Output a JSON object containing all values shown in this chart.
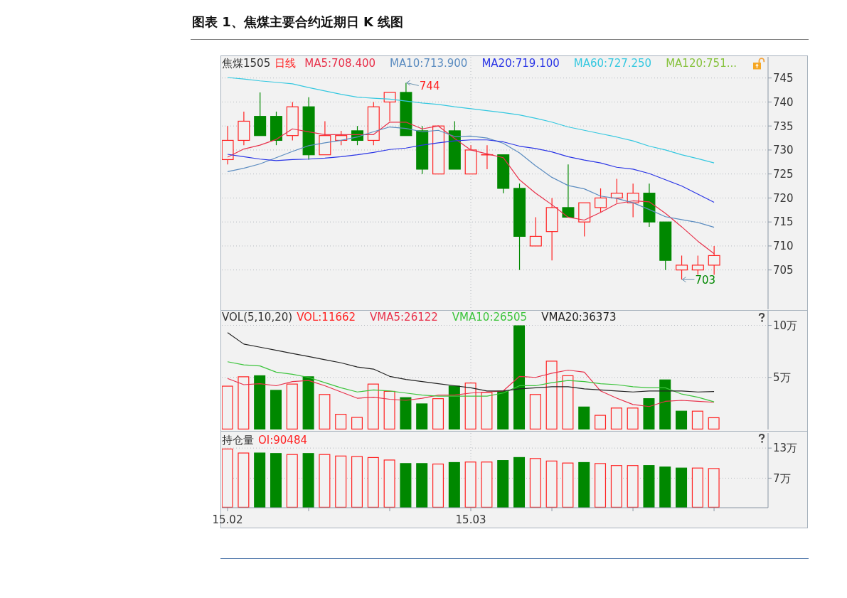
{
  "chart_data": [
    {
      "type": "candlestick",
      "title": "图表 1、焦煤主要合约近期日 K 线图",
      "legend_title": "焦煤1505",
      "annotations": [
        "日线",
        "MA120:751...",
        "744",
        "703"
      ],
      "categories": [
        "15.02",
        null,
        null,
        null,
        null,
        null,
        null,
        null,
        null,
        null,
        null,
        null,
        null,
        null,
        null,
        "15.03",
        null,
        null,
        null,
        null,
        null,
        null,
        null,
        null,
        null,
        null,
        null,
        null,
        null,
        null,
        null
      ],
      "ohlc": [
        [
          728,
          735,
          727,
          732
        ],
        [
          732,
          738,
          731,
          736
        ],
        [
          737,
          742,
          733,
          733
        ],
        [
          737,
          738,
          731,
          732
        ],
        [
          733,
          740,
          732,
          739
        ],
        [
          739,
          741,
          728,
          729
        ],
        [
          729,
          736,
          729,
          733
        ],
        [
          732,
          734,
          731,
          733
        ],
        [
          734,
          735,
          731,
          732
        ],
        [
          732,
          740,
          731,
          739
        ],
        [
          740,
          742,
          736,
          742
        ],
        [
          742,
          744,
          733,
          733
        ],
        [
          734,
          735,
          725,
          726
        ],
        [
          725,
          735,
          725,
          735
        ],
        [
          734,
          736,
          726,
          726
        ],
        [
          725,
          731,
          725,
          730
        ],
        [
          729,
          731,
          726,
          729
        ],
        [
          729,
          729,
          721,
          722
        ],
        [
          722,
          723,
          705,
          712
        ],
        [
          710,
          716,
          710,
          712
        ],
        [
          713,
          720,
          707,
          718
        ],
        [
          718,
          727,
          716,
          716
        ],
        [
          715,
          719,
          712,
          719
        ],
        [
          718,
          722,
          717,
          720
        ],
        [
          720,
          724,
          719,
          721
        ],
        [
          719,
          723,
          716,
          721
        ],
        [
          721,
          723,
          714,
          715
        ],
        [
          715,
          715,
          705,
          707
        ],
        [
          705,
          708,
          703,
          706
        ],
        [
          705,
          708,
          704,
          706
        ],
        [
          706,
          710,
          704,
          708
        ]
      ],
      "colors": [
        "#ff2222",
        "#ff2222",
        "#008800",
        "#008800",
        "#ff2222",
        "#008800",
        "#ff2222",
        "#ff2222",
        "#008800",
        "#ff2222",
        "#ff2222",
        "#008800",
        "#008800",
        "#ff2222",
        "#008800",
        "#ff2222",
        "#ff2222",
        "#008800",
        "#008800",
        "#ff2222",
        "#ff2222",
        "#008800",
        "#ff2222",
        "#ff2222",
        "#ff2222",
        "#ff2222",
        "#008800",
        "#008800",
        "#ff2222",
        "#ff2222",
        "#ff2222"
      ],
      "series": [
        {
          "type": "line",
          "name": "MA5:708.400",
          "color": "#e8304a",
          "values": [
            728.5,
            730.2,
            731.0,
            732.2,
            734.4,
            733.8,
            733.2,
            733.2,
            733.2,
            733.2,
            735.8,
            735.8,
            734.4,
            735.0,
            732.4,
            730.0,
            729.2,
            728.4,
            723.8,
            721.0,
            718.6,
            716.0,
            715.4,
            717.0,
            718.8,
            719.4,
            719.2,
            716.8,
            714.0,
            711.0,
            708.4
          ]
        },
        {
          "type": "line",
          "name": "MA10:713.900",
          "color": "#5b8cc0",
          "values": [
            725.5,
            726.2,
            727.1,
            728.4,
            729.7,
            730.9,
            731.5,
            732.0,
            732.7,
            733.8,
            734.8,
            734.5,
            733.8,
            734.1,
            732.8,
            732.9,
            732.5,
            731.4,
            729.4,
            726.7,
            724.3,
            722.6,
            721.9,
            720.4,
            719.9,
            719.0,
            717.6,
            716.1,
            715.5,
            714.9,
            713.9
          ]
        },
        {
          "type": "line",
          "name": "MA20:719.100",
          "color": "#2a35e6",
          "values": [
            729.1,
            728.6,
            728.1,
            727.8,
            728.0,
            728.1,
            728.3,
            728.6,
            729.0,
            729.5,
            730.1,
            730.4,
            731.0,
            731.5,
            731.9,
            732.1,
            732.1,
            731.7,
            730.8,
            730.3,
            729.6,
            728.6,
            727.9,
            727.3,
            726.4,
            726.0,
            725.1,
            723.8,
            722.5,
            720.8,
            719.1
          ]
        },
        {
          "type": "line",
          "name": "MA60:727.250",
          "color": "#35c8e0",
          "values": [
            745.1,
            744.8,
            744.4,
            744.1,
            743.8,
            743.0,
            742.3,
            741.6,
            741.0,
            740.8,
            740.6,
            740.2,
            739.8,
            739.5,
            739.0,
            738.6,
            738.2,
            737.8,
            737.3,
            736.6,
            735.8,
            734.8,
            734.1,
            733.4,
            732.7,
            731.9,
            730.8,
            730.0,
            729.0,
            728.2,
            727.3
          ]
        }
      ],
      "ylim": [
        696.8,
        749.4
      ],
      "yticks": [
        705,
        710,
        715,
        720,
        725,
        730,
        735,
        740,
        745
      ],
      "grid": true,
      "legend": "top left",
      "tick_labels": "y"
    },
    {
      "type": "bar",
      "legend_title": "VOL(5,10,20)",
      "categories": [
        "15.02",
        null,
        null,
        null,
        null,
        null,
        null,
        null,
        null,
        null,
        null,
        null,
        null,
        null,
        null,
        "15.03",
        null,
        null,
        null,
        null,
        null,
        null,
        null,
        null,
        null,
        null,
        null,
        null,
        null,
        null,
        null
      ],
      "series": [
        {
          "name": "VOL:11662",
          "colors": [
            "#ff2222",
            "#ff2222",
            "#008800",
            "#008800",
            "#ff2222",
            "#008800",
            "#ff2222",
            "#ff2222",
            "#ff2222",
            "#ff2222",
            "#ff2222",
            "#008800",
            "#008800",
            "#ff2222",
            "#008800",
            "#ff2222",
            "#ff2222",
            "#008800",
            "#008800",
            "#ff2222",
            "#ff2222",
            "#ff2222",
            "#008800",
            "#ff2222",
            "#ff2222",
            "#ff2222",
            "#008800",
            "#008800",
            "#008800",
            "#ff2222",
            "#ff2222"
          ],
          "values": [
            4.2,
            5.1,
            5.2,
            3.8,
            4.4,
            5.1,
            3.4,
            1.5,
            1.2,
            4.4,
            3.7,
            3.1,
            2.5,
            3.0,
            4.2,
            4.5,
            3.6,
            3.7,
            10.0,
            3.4,
            6.6,
            5.2,
            2.2,
            1.4,
            2.1,
            2.1,
            3.0,
            4.8,
            1.8,
            1.8,
            1.17
          ]
        },
        {
          "type": "line",
          "name": "VMA5:26122",
          "color": "#e8304a",
          "values": [
            4.9,
            4.3,
            4.4,
            4.2,
            4.6,
            4.7,
            4.2,
            3.6,
            3.0,
            3.1,
            2.9,
            2.8,
            3.0,
            3.3,
            3.3,
            3.5,
            3.6,
            3.7,
            5.1,
            5.0,
            5.4,
            5.7,
            5.5,
            3.7,
            3.0,
            2.4,
            2.2,
            2.7,
            2.8,
            2.7,
            2.61
          ]
        },
        {
          "type": "line",
          "name": "VMA10:26505",
          "color": "#3cc43c",
          "values": [
            6.5,
            6.2,
            6.1,
            5.5,
            5.3,
            5.0,
            4.5,
            4.0,
            3.6,
            3.8,
            3.7,
            3.5,
            3.3,
            3.2,
            3.2,
            3.2,
            3.2,
            3.5,
            4.2,
            4.2,
            4.5,
            4.7,
            4.6,
            4.4,
            4.3,
            4.1,
            4.0,
            4.0,
            3.4,
            3.1,
            2.65
          ]
        },
        {
          "type": "line",
          "name": "VMA20:36373",
          "color": "#222222",
          "values": [
            9.3,
            8.2,
            7.9,
            7.6,
            7.3,
            7.0,
            6.7,
            6.4,
            6.0,
            5.8,
            5.1,
            4.8,
            4.6,
            4.4,
            4.2,
            4.0,
            3.7,
            3.7,
            3.9,
            4.0,
            4.1,
            4.1,
            3.9,
            3.8,
            3.7,
            3.6,
            3.7,
            3.7,
            3.7,
            3.6,
            3.64
          ]
        }
      ],
      "ylim": [
        0,
        11.4
      ],
      "yticks": [
        {
          "value": 5,
          "label": "5万"
        },
        {
          "value": 10,
          "label": "10万"
        }
      ],
      "grid": true,
      "legend": "top left",
      "tick_labels": "y"
    },
    {
      "type": "bar",
      "legend_title": "持仓量",
      "categories": [
        "15.02",
        null,
        null,
        null,
        null,
        null,
        null,
        null,
        null,
        null,
        null,
        null,
        null,
        null,
        null,
        "15.03",
        null,
        null,
        null,
        null,
        null,
        null,
        null,
        null,
        null,
        null,
        null,
        null,
        null,
        null,
        null
      ],
      "series": [
        {
          "name": "OI:90484",
          "colors": [
            "#ff2222",
            "#ff2222",
            "#008800",
            "#008800",
            "#ff2222",
            "#008800",
            "#ff2222",
            "#ff2222",
            "#ff2222",
            "#ff2222",
            "#ff2222",
            "#008800",
            "#008800",
            "#ff2222",
            "#008800",
            "#ff2222",
            "#ff2222",
            "#008800",
            "#008800",
            "#ff2222",
            "#ff2222",
            "#ff2222",
            "#008800",
            "#ff2222",
            "#ff2222",
            "#ff2222",
            "#008800",
            "#008800",
            "#008800",
            "#ff2222",
            "#ff2222"
          ],
          "values": [
            12.9,
            12.1,
            12.1,
            12.0,
            11.8,
            12.0,
            11.8,
            11.5,
            11.4,
            11.2,
            10.7,
            10.0,
            10.0,
            9.9,
            10.2,
            10.3,
            10.3,
            10.6,
            11.2,
            11.0,
            10.5,
            10.1,
            10.2,
            10.0,
            9.6,
            9.6,
            9.6,
            9.3,
            9.1,
            9.1,
            9.0
          ]
        }
      ],
      "ylim": [
        1.1,
        16.0
      ],
      "yticks": [
        {
          "value": 7,
          "label": "7万"
        },
        {
          "value": 13,
          "label": "13万"
        }
      ],
      "grid": true,
      "legend": "top left"
    }
  ]
}
